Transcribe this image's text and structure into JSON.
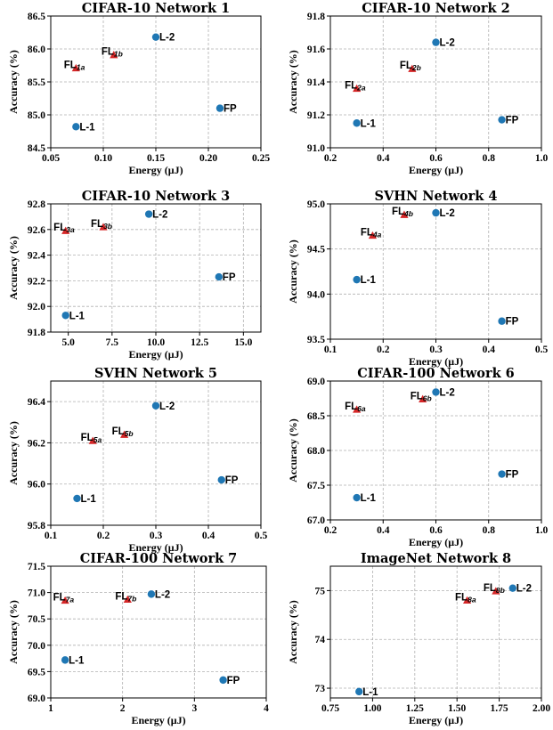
{
  "chart_data": [
    {
      "type": "scatter",
      "title": "CIFAR-10 Network 1",
      "xlabel": "Energy (μJ)",
      "ylabel": "Accuracy (%)",
      "xlim": [
        0.05,
        0.25
      ],
      "ylim": [
        84.5,
        86.5
      ],
      "xticks": [
        "0.05",
        "0.10",
        "0.15",
        "0.20",
        "0.25"
      ],
      "yticks": [
        "84.5",
        "85.0",
        "85.5",
        "86.0",
        "86.5"
      ],
      "grid": true,
      "points": [
        {
          "label": "L-1",
          "sub": "",
          "x": 0.074,
          "y": 84.82,
          "shape": "circle"
        },
        {
          "label": "L-2",
          "sub": "",
          "x": 0.15,
          "y": 86.18,
          "shape": "circle"
        },
        {
          "label": "FP",
          "sub": "",
          "x": 0.211,
          "y": 85.1,
          "shape": "circle"
        },
        {
          "label": "FL",
          "sub": "1a",
          "x": 0.074,
          "y": 85.71,
          "shape": "triangle"
        },
        {
          "label": "FL",
          "sub": "1b",
          "x": 0.11,
          "y": 85.91,
          "shape": "triangle"
        }
      ]
    },
    {
      "type": "scatter",
      "title": "CIFAR-10 Network 2",
      "xlabel": "Energy (μJ)",
      "ylabel": "Accuracy (%)",
      "xlim": [
        0.2,
        1.0
      ],
      "ylim": [
        91.0,
        91.8
      ],
      "xticks": [
        "0.2",
        "0.4",
        "0.6",
        "0.8",
        "1.0"
      ],
      "yticks": [
        "91.0",
        "91.2",
        "91.4",
        "91.6",
        "91.8"
      ],
      "grid": true,
      "points": [
        {
          "label": "L-1",
          "sub": "",
          "x": 0.3,
          "y": 91.15,
          "shape": "circle"
        },
        {
          "label": "L-2",
          "sub": "",
          "x": 0.6,
          "y": 91.64,
          "shape": "circle"
        },
        {
          "label": "FP",
          "sub": "",
          "x": 0.85,
          "y": 91.17,
          "shape": "circle"
        },
        {
          "label": "FL",
          "sub": "2a",
          "x": 0.3,
          "y": 91.36,
          "shape": "triangle"
        },
        {
          "label": "FL",
          "sub": "2b",
          "x": 0.51,
          "y": 91.48,
          "shape": "triangle"
        }
      ]
    },
    {
      "type": "scatter",
      "title": "CIFAR-10 Network 3",
      "xlabel": "Energy (μJ)",
      "ylabel": "Accuracy (%)",
      "xlim": [
        4.0,
        16.0
      ],
      "ylim": [
        91.8,
        92.8
      ],
      "xticks": [
        "5.0",
        "7.5",
        "10.0",
        "12.5",
        "15.0"
      ],
      "xtick_values": [
        5.0,
        7.5,
        10.0,
        12.5,
        15.0
      ],
      "yticks": [
        "91.8",
        "92.0",
        "92.2",
        "92.4",
        "92.6",
        "92.8"
      ],
      "grid": true,
      "points": [
        {
          "label": "L-1",
          "sub": "",
          "x": 4.85,
          "y": 91.93,
          "shape": "circle"
        },
        {
          "label": "L-2",
          "sub": "",
          "x": 9.6,
          "y": 92.72,
          "shape": "circle"
        },
        {
          "label": "FP",
          "sub": "",
          "x": 13.6,
          "y": 92.23,
          "shape": "circle"
        },
        {
          "label": "FL",
          "sub": "3a",
          "x": 4.85,
          "y": 92.59,
          "shape": "triangle"
        },
        {
          "label": "FL",
          "sub": "3b",
          "x": 7.0,
          "y": 92.62,
          "shape": "triangle"
        }
      ]
    },
    {
      "type": "scatter",
      "title": "SVHN Network 4",
      "xlabel": "Energy (μJ)",
      "ylabel": "Accuracy (%)",
      "xlim": [
        0.1,
        0.5
      ],
      "ylim": [
        93.5,
        95.0
      ],
      "xticks": [
        "0.1",
        "0.2",
        "0.3",
        "0.4",
        "0.5"
      ],
      "yticks": [
        "93.5",
        "94.0",
        "94.5",
        "95.0"
      ],
      "grid": true,
      "points": [
        {
          "label": "L-1",
          "sub": "",
          "x": 0.15,
          "y": 94.16,
          "shape": "circle"
        },
        {
          "label": "L-2",
          "sub": "",
          "x": 0.3,
          "y": 94.9,
          "shape": "circle"
        },
        {
          "label": "FP",
          "sub": "",
          "x": 0.425,
          "y": 93.7,
          "shape": "circle"
        },
        {
          "label": "FL",
          "sub": "4a",
          "x": 0.18,
          "y": 94.65,
          "shape": "triangle"
        },
        {
          "label": "FL",
          "sub": "4b",
          "x": 0.24,
          "y": 94.88,
          "shape": "triangle"
        }
      ]
    },
    {
      "type": "scatter",
      "title": "SVHN Network 5",
      "xlabel": "Energy (μJ)",
      "ylabel": "Accuracy (%)",
      "xlim": [
        0.1,
        0.5
      ],
      "ylim": [
        95.8,
        96.5
      ],
      "xticks": [
        "0.1",
        "0.2",
        "0.3",
        "0.4",
        "0.5"
      ],
      "yticks": [
        "95.8",
        "96.0",
        "96.2",
        "96.4"
      ],
      "grid": true,
      "points": [
        {
          "label": "L-1",
          "sub": "",
          "x": 0.15,
          "y": 95.93,
          "shape": "circle"
        },
        {
          "label": "L-2",
          "sub": "",
          "x": 0.3,
          "y": 96.38,
          "shape": "circle"
        },
        {
          "label": "FP",
          "sub": "",
          "x": 0.425,
          "y": 96.02,
          "shape": "circle"
        },
        {
          "label": "FL",
          "sub": "5a",
          "x": 0.18,
          "y": 96.21,
          "shape": "triangle"
        },
        {
          "label": "FL",
          "sub": "5b",
          "x": 0.24,
          "y": 96.24,
          "shape": "triangle"
        }
      ]
    },
    {
      "type": "scatter",
      "title": "CIFAR-100 Network 6",
      "xlabel": "Energy (μJ)",
      "ylabel": "Accuracy (%)",
      "xlim": [
        0.2,
        1.0
      ],
      "ylim": [
        67.0,
        69.0
      ],
      "xticks": [
        "0.2",
        "0.4",
        "0.6",
        "0.8",
        "1.0"
      ],
      "yticks": [
        "67.0",
        "67.5",
        "68.0",
        "68.5",
        "69.0"
      ],
      "grid": true,
      "points": [
        {
          "label": "L-1",
          "sub": "",
          "x": 0.3,
          "y": 67.32,
          "shape": "circle"
        },
        {
          "label": "L-2",
          "sub": "",
          "x": 0.6,
          "y": 68.84,
          "shape": "circle"
        },
        {
          "label": "FP",
          "sub": "",
          "x": 0.85,
          "y": 67.66,
          "shape": "circle"
        },
        {
          "label": "FL",
          "sub": "6a",
          "x": 0.3,
          "y": 68.59,
          "shape": "triangle"
        },
        {
          "label": "FL",
          "sub": "6b",
          "x": 0.55,
          "y": 68.74,
          "shape": "triangle"
        }
      ]
    },
    {
      "type": "scatter",
      "title": "CIFAR-100 Network 7",
      "xlabel": "Energy (μJ)",
      "ylabel": "Accuracy (%)",
      "xlim": [
        1.0,
        4.0
      ],
      "ylim": [
        69.0,
        71.5
      ],
      "xticks": [
        "1",
        "2",
        "3",
        "4"
      ],
      "yticks": [
        "69.0",
        "69.5",
        "70.0",
        "70.5",
        "71.0",
        "71.5"
      ],
      "grid": true,
      "points": [
        {
          "label": "L-1",
          "sub": "",
          "x": 1.2,
          "y": 69.72,
          "shape": "circle"
        },
        {
          "label": "L-2",
          "sub": "",
          "x": 2.4,
          "y": 70.97,
          "shape": "circle"
        },
        {
          "label": "FP",
          "sub": "",
          "x": 3.4,
          "y": 69.34,
          "shape": "circle"
        },
        {
          "label": "FL",
          "sub": "7a",
          "x": 1.2,
          "y": 70.85,
          "shape": "triangle"
        },
        {
          "label": "FL",
          "sub": "7b",
          "x": 2.07,
          "y": 70.87,
          "shape": "triangle"
        }
      ]
    },
    {
      "type": "scatter",
      "title": "ImageNet Network 8",
      "xlabel": "Energy (μJ)",
      "ylabel": "Accuracy (%)",
      "xlim": [
        0.75,
        2.0
      ],
      "ylim": [
        72.8,
        75.5
      ],
      "xticks": [
        "0.75",
        "1.00",
        "1.25",
        "1.50",
        "1.75",
        "2.00"
      ],
      "yticks": [
        "73",
        "74",
        "75"
      ],
      "grid": true,
      "points": [
        {
          "label": "L-1",
          "sub": "",
          "x": 0.92,
          "y": 72.93,
          "shape": "circle"
        },
        {
          "label": "L-2",
          "sub": "",
          "x": 1.83,
          "y": 75.05,
          "shape": "circle"
        },
        {
          "label": "FL",
          "sub": "8a",
          "x": 1.56,
          "y": 74.8,
          "shape": "triangle"
        },
        {
          "label": "FL",
          "sub": "8b",
          "x": 1.73,
          "y": 74.99,
          "shape": "triangle"
        }
      ]
    }
  ],
  "colors": {
    "circle": "#1f77b4",
    "triangle": "#d62728"
  }
}
